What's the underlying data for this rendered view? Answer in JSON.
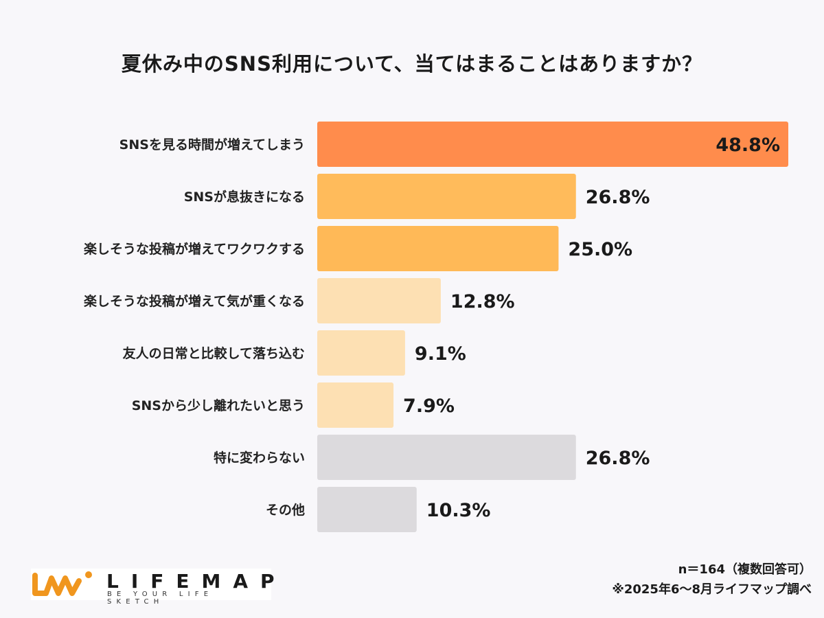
{
  "chart_data": {
    "type": "bar",
    "orientation": "horizontal",
    "title": "夏休み中のSNS利用について、当てはまることはありますか？",
    "categories": [
      "SNSを見る時間が増えてしまう",
      "SNSが息抜きになる",
      "楽しそうな投稿が増えてワクワクする",
      "楽しそうな投稿が増えて気が重くなる",
      "友人の日常と比較して落ち込む",
      "SNSから少し離れたいと思う",
      "特に変わらない",
      "その他"
    ],
    "values": [
      48.8,
      26.8,
      25.0,
      12.8,
      9.1,
      7.9,
      26.8,
      10.3
    ],
    "labels": [
      "48.8%",
      "26.8%",
      "25.0%",
      "12.8%",
      "9.1%",
      "7.9%",
      "26.8%",
      "10.3%"
    ],
    "colors": [
      "#ff8c4c",
      "#ffbb5b",
      "#ffb957",
      "#fde0b3",
      "#fde0b3",
      "#fde0b3",
      "#dcdadd",
      "#dcdadd"
    ],
    "unit": "%",
    "grid": false,
    "legend": "none"
  },
  "footer": {
    "sample": "n＝164（複数回答可）",
    "source": "※2025年6〜8月ライフマップ調べ"
  },
  "logo": {
    "name": "LIFEMAP",
    "tagline": "BE YOUR LIFE SKETCH",
    "color": "#f0961e"
  }
}
